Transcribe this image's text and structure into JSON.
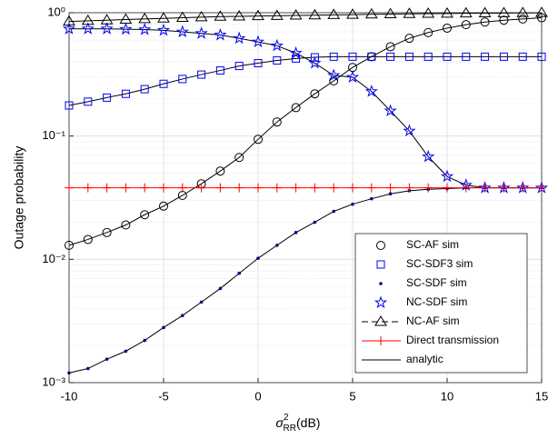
{
  "chart_data": {
    "type": "line",
    "log_y": true,
    "grid": true,
    "minor_grid": true,
    "y_label": "Outage probability",
    "x_label": {
      "symbol": "σ",
      "sup": "2",
      "sub": "RR",
      "unit": "(dB)"
    },
    "x": [
      -10,
      -9,
      -8,
      -7,
      -6,
      -5,
      -4,
      -3,
      -2,
      -1,
      0,
      1,
      2,
      3,
      4,
      5,
      6,
      7,
      8,
      9,
      10,
      11,
      12,
      13,
      14,
      15
    ],
    "xlim": [
      -10,
      15
    ],
    "xticks": [
      -10,
      -5,
      0,
      5,
      10,
      15
    ],
    "ylim": [
      0.001,
      1
    ],
    "yticks": [
      {
        "value": 0.001,
        "label": "10⁻³"
      },
      {
        "value": 0.01,
        "label": "10⁻²"
      },
      {
        "value": 0.1,
        "label": "10⁻¹"
      },
      {
        "value": 1,
        "label": "10⁰"
      }
    ],
    "legend_position": "lower right",
    "analytic_label": "analytic",
    "analytic_color": "#000000",
    "series": [
      {
        "name": "SC-AF sim",
        "marker": "circle",
        "color": "#000000",
        "values": [
          0.013,
          0.0145,
          0.0165,
          0.019,
          0.023,
          0.027,
          0.033,
          0.041,
          0.052,
          0.067,
          0.094,
          0.13,
          0.17,
          0.22,
          0.28,
          0.36,
          0.44,
          0.53,
          0.62,
          0.69,
          0.75,
          0.8,
          0.84,
          0.87,
          0.89,
          0.91
        ]
      },
      {
        "name": "SC-SDF3 sim",
        "marker": "square",
        "color": "#0000ff",
        "values": [
          0.177,
          0.19,
          0.205,
          0.22,
          0.24,
          0.265,
          0.29,
          0.315,
          0.34,
          0.37,
          0.39,
          0.41,
          0.425,
          0.435,
          0.44,
          0.44,
          0.44,
          0.44,
          0.44,
          0.44,
          0.44,
          0.44,
          0.44,
          0.44,
          0.44,
          0.44
        ]
      },
      {
        "name": "SC-SDF sim",
        "marker": "dot",
        "color": "#00008b",
        "values": [
          0.0012,
          0.0013,
          0.00155,
          0.0018,
          0.0022,
          0.0028,
          0.0035,
          0.0045,
          0.0058,
          0.0077,
          0.0102,
          0.013,
          0.0165,
          0.02,
          0.0245,
          0.028,
          0.031,
          0.034,
          0.036,
          0.037,
          0.0375,
          0.038,
          0.038,
          0.038,
          0.038,
          0.038
        ]
      },
      {
        "name": "NC-SDF sim",
        "marker": "star",
        "color": "#0000ff",
        "values": [
          0.74,
          0.74,
          0.74,
          0.735,
          0.73,
          0.72,
          0.7,
          0.68,
          0.66,
          0.62,
          0.58,
          0.54,
          0.47,
          0.39,
          0.31,
          0.3,
          0.23,
          0.16,
          0.11,
          0.068,
          0.047,
          0.04,
          0.038,
          0.038,
          0.038,
          0.038
        ]
      },
      {
        "name": "NC-AF sim",
        "marker": "triangle",
        "color": "#000000",
        "dashed": true,
        "values": [
          0.85,
          0.86,
          0.87,
          0.88,
          0.89,
          0.9,
          0.91,
          0.92,
          0.93,
          0.935,
          0.94,
          0.945,
          0.95,
          0.955,
          0.96,
          0.965,
          0.97,
          0.975,
          0.98,
          0.983,
          0.986,
          0.989,
          0.991,
          0.993,
          0.995,
          0.997
        ]
      },
      {
        "name": "Direct transmission",
        "marker": "plus",
        "color": "#ff0000",
        "line_color": "#ff0000",
        "values": [
          0.038,
          0.038,
          0.038,
          0.038,
          0.038,
          0.038,
          0.038,
          0.038,
          0.038,
          0.038,
          0.038,
          0.038,
          0.038,
          0.038,
          0.038,
          0.038,
          0.038,
          0.038,
          0.038,
          0.038,
          0.038,
          0.038,
          0.038,
          0.038,
          0.038,
          0.038
        ]
      }
    ]
  }
}
